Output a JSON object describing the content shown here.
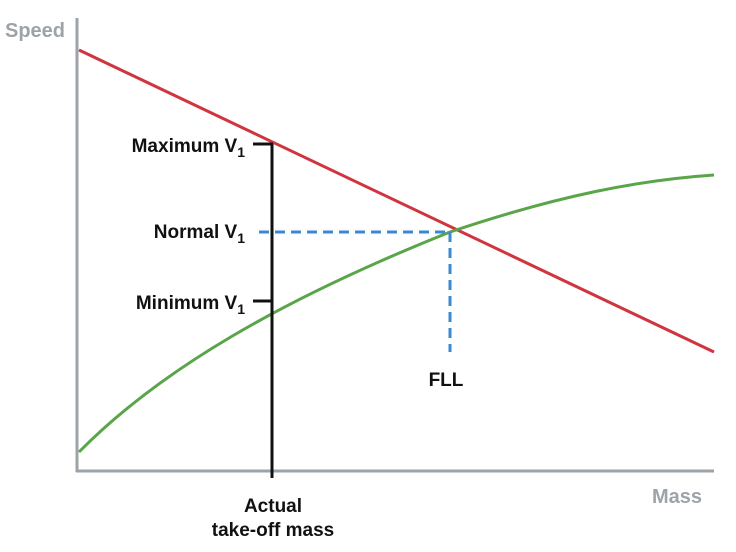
{
  "axes": {
    "y_title": "Speed",
    "x_title": "Mass"
  },
  "labels": {
    "maximum_v1": {
      "main": "Maximum V",
      "sub": "1"
    },
    "normal_v1": {
      "main": "Normal V",
      "sub": "1"
    },
    "minimum_v1": {
      "main": "Minimum V",
      "sub": "1"
    },
    "fll": "FLL",
    "actual_mass_line1": "Actual",
    "actual_mass_line2": "take-off mass"
  },
  "colors": {
    "max_limit_line": "#d0343f",
    "min_limit_curve": "#5aa54a",
    "guide_dashed": "#3a8ad1",
    "axis": "#9ea3a8",
    "markers": "#111111"
  }
}
